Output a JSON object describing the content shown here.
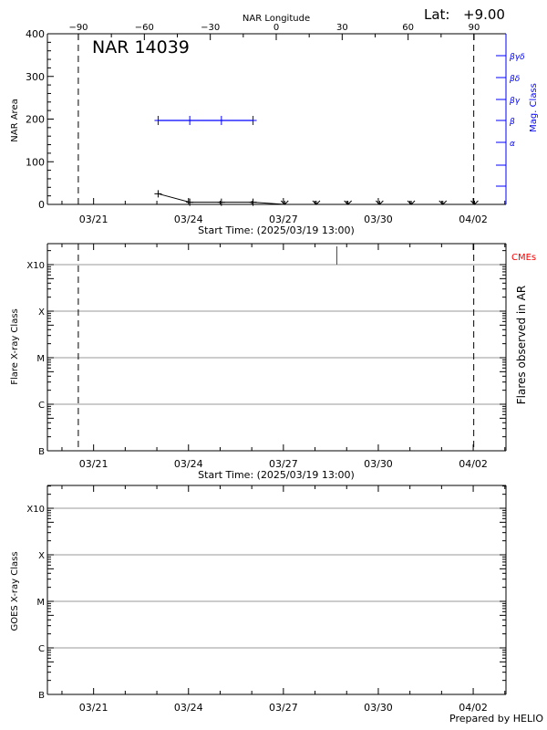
{
  "header": {
    "lat_label": "Lat:",
    "lat_value": "+9.00",
    "top_axis_title": "NAR Longitude",
    "region_title": "NAR 14039"
  },
  "footer": {
    "credit": "Prepared by HELIO"
  },
  "colors": {
    "axis": "#000000",
    "mag_class": "#0000ff",
    "cme": "#ff0000",
    "grid": "#999999"
  },
  "chart_data": [
    {
      "id": "nar-area",
      "type": "line",
      "title": "NAR 14039",
      "xlabel": "Start Time: (2025/03/19 13:00)",
      "ylabel": "NAR Area",
      "y2label": "Mag. Class",
      "top_xlabel": "NAR Longitude",
      "ylim": [
        0,
        400
      ],
      "yticks": [
        0,
        100,
        200,
        300,
        400
      ],
      "xticks": [
        "03/21",
        "03/24",
        "03/27",
        "03/30",
        "04/02"
      ],
      "top_xticks": [
        -90,
        -60,
        -30,
        0,
        30,
        60,
        90
      ],
      "y2ticks": [
        "α",
        "β",
        "βγ",
        "βδ",
        "βγδ"
      ],
      "dashed_verticals_days": [
        1.0,
        13.5
      ],
      "series": [
        {
          "name": "NAR Area",
          "color": "#000000",
          "x_days": [
            3.5,
            4.5,
            5.5,
            6.5,
            7.5,
            8.5,
            9.5,
            10.5,
            11.5,
            12.5,
            13.5
          ],
          "values": [
            25,
            5,
            5,
            5,
            0,
            0,
            0,
            0,
            0,
            0,
            0
          ]
        },
        {
          "name": "Mag. Class",
          "color": "#0000ff",
          "x_days": [
            3.5,
            4.5,
            5.5,
            6.5
          ],
          "values": [
            "β",
            "β",
            "β",
            "β"
          ]
        }
      ]
    },
    {
      "id": "flares-in-ar",
      "type": "scatter",
      "xlabel": "Start Time: (2025/03/19 13:00)",
      "ylabel": "Flare X-ray Class",
      "y2label": "Flares observed in AR",
      "yticks": [
        "B",
        "C",
        "M",
        "X",
        "X10"
      ],
      "xticks": [
        "03/21",
        "03/24",
        "03/27",
        "03/30",
        "04/02"
      ],
      "grid": true,
      "dashed_verticals_days": [
        1.0,
        13.5
      ],
      "annotations": [
        {
          "label": "CMEs",
          "color": "#ff0000",
          "x_days": 9.15
        }
      ],
      "series": []
    },
    {
      "id": "goes-xray",
      "type": "line",
      "ylabel": "GOES X-ray Class",
      "yticks": [
        "B",
        "C",
        "M",
        "X",
        "X10"
      ],
      "xticks": [
        "03/21",
        "03/24",
        "03/27",
        "03/30",
        "04/02"
      ],
      "grid": true,
      "series": []
    }
  ]
}
